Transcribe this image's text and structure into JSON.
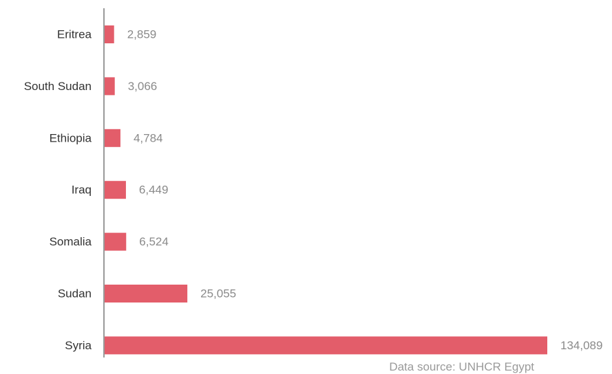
{
  "chart_data": {
    "type": "bar",
    "orientation": "horizontal",
    "categories": [
      "Eritrea",
      "South Sudan",
      "Ethiopia",
      "Iraq",
      "Somalia",
      "Sudan",
      "Syria"
    ],
    "values": [
      2859,
      3066,
      4784,
      6449,
      6524,
      25055,
      134089
    ],
    "value_labels": [
      "2,859",
      "3,066",
      "4,784",
      "6,449",
      "6,524",
      "25,055",
      "134,089"
    ],
    "xlim": [
      0,
      134089
    ],
    "grid": false,
    "bar_color": "#e35d6a",
    "axis_color": "#999999"
  },
  "source_note": "Data source: UNHCR Egypt"
}
